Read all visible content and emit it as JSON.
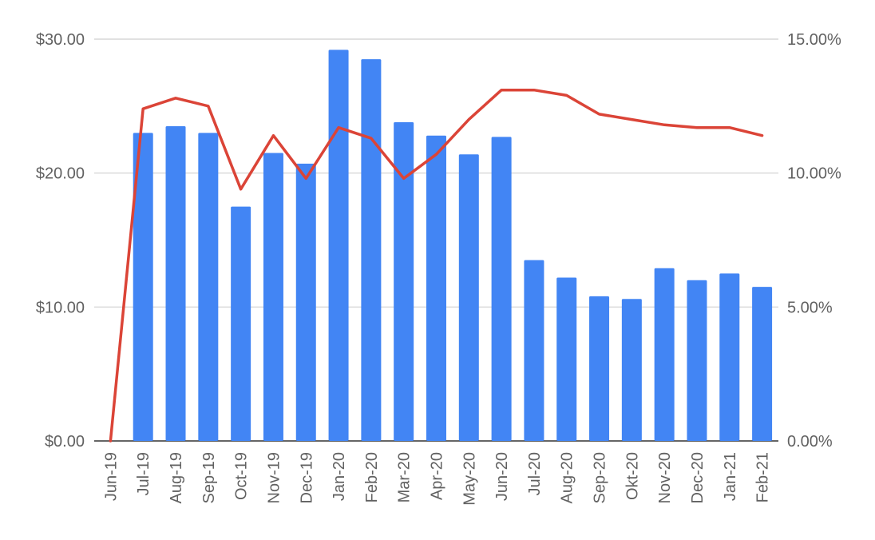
{
  "chart_data": {
    "type": "bar",
    "categories": [
      "Jun-19",
      "Jul-19",
      "Aug-19",
      "Sep-19",
      "Oct-19",
      "Nov-19",
      "Dec-19",
      "Jan-20",
      "Feb-20",
      "Mar-20",
      "Apr-20",
      "May-20",
      "Jun-20",
      "Jul-20",
      "Aug-20",
      "Sep-20",
      "Okt-20",
      "Nov-20",
      "Dec-20",
      "Jan-21",
      "Feb-21"
    ],
    "series": [
      {
        "type": "bar",
        "axis": "left",
        "color": "#4285f4",
        "values": [
          0,
          23.0,
          23.5,
          23.0,
          17.5,
          21.5,
          20.7,
          29.2,
          28.5,
          23.8,
          22.8,
          21.4,
          22.7,
          13.5,
          12.2,
          10.8,
          10.6,
          12.9,
          12.0,
          12.5,
          11.5
        ]
      },
      {
        "type": "line",
        "axis": "right",
        "color": "#db4437",
        "values": [
          0.0,
          12.4,
          12.8,
          12.5,
          9.4,
          11.4,
          9.8,
          11.7,
          11.3,
          9.8,
          10.7,
          12.0,
          13.1,
          13.1,
          12.9,
          12.2,
          12.0,
          11.8,
          11.7,
          11.7,
          11.4
        ]
      }
    ],
    "left_axis": {
      "ylim": [
        0,
        30
      ],
      "ticks": [
        0,
        10,
        20,
        30
      ],
      "tick_labels": [
        "$0.00",
        "$10.00",
        "$20.00",
        "$30.00"
      ]
    },
    "right_axis": {
      "ylim": [
        0,
        15
      ],
      "ticks": [
        0,
        5,
        10,
        15
      ],
      "tick_labels": [
        "0.00%",
        "5.00%",
        "10.00%",
        "15.00%"
      ]
    },
    "grid": true,
    "title": "",
    "xlabel": "",
    "ylabel": ""
  }
}
